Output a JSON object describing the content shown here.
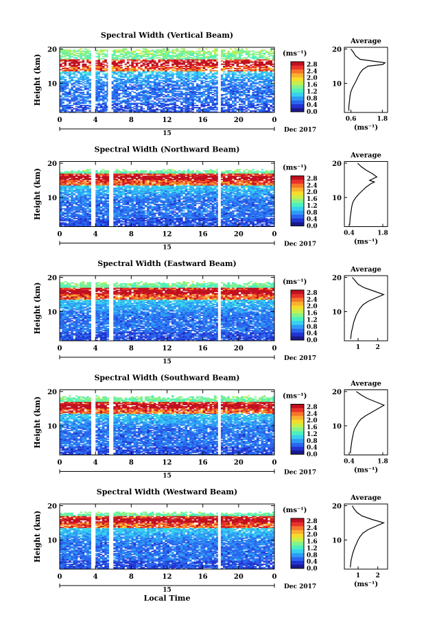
{
  "figure": {
    "date_label": "Dec 2017",
    "day_label": "15",
    "xlabel": "Local Time"
  },
  "colorbar": {
    "unit_label": "(ms⁻¹)",
    "tick_labels": [
      "0.0",
      "0.4",
      "0.8",
      "1.2",
      "1.6",
      "2.0",
      "2.4",
      "2.8"
    ],
    "colors": [
      "#1a1a8c",
      "#2233d0",
      "#2a66ee",
      "#2e9cf5",
      "#38d0f0",
      "#4cf0c0",
      "#86f28a",
      "#c8ee4a",
      "#f6dc2a",
      "#fbb030",
      "#f7762a",
      "#e8322a",
      "#c01020"
    ]
  },
  "average_panel_title": "Average",
  "chart_data": [
    {
      "type": "heatmap",
      "title": "Spectral Width (Vertical Beam)",
      "xlabel": "",
      "ylabel": "Height (km)",
      "x_ticks": [
        "0",
        "4",
        "8",
        "12",
        "16",
        "20",
        "0"
      ],
      "y_ticks": [
        "10",
        "20"
      ],
      "xlim": [
        0,
        24
      ],
      "ylim": [
        1.5,
        20.5
      ],
      "data_gaps_hours": [
        [
          3.6,
          4.0
        ],
        [
          5.4,
          5.8
        ],
        [
          17.7,
          18.0
        ]
      ],
      "top_cutoff_km": 19.5,
      "sparsity": 0.28,
      "average_profile": {
        "xlabel": "(ms⁻¹)",
        "x_ticks": [
          "0.6",
          "1.8"
        ],
        "xlim": [
          0.35,
          2.0
        ],
        "x_tick_values": [
          0.6,
          1.8
        ],
        "height_km": [
          2,
          3,
          4,
          5,
          6,
          7,
          8,
          9,
          10,
          11,
          12,
          13,
          14,
          15,
          15.5,
          16,
          17,
          18,
          19,
          20
        ],
        "value": [
          0.52,
          0.52,
          0.53,
          0.55,
          0.56,
          0.58,
          0.62,
          0.68,
          0.75,
          0.82,
          0.88,
          0.95,
          1.05,
          1.25,
          1.82,
          1.9,
          0.95,
          0.78,
          0.7,
          0.6
        ]
      },
      "colorbar_hidden": false
    },
    {
      "type": "heatmap",
      "title": "Spectral Width (Northward Beam)",
      "xlabel": "",
      "ylabel": "Height (km)",
      "x_ticks": [
        "0",
        "4",
        "8",
        "12",
        "16",
        "20",
        "0"
      ],
      "y_ticks": [
        "10",
        "20"
      ],
      "xlim": [
        0,
        24
      ],
      "ylim": [
        1.5,
        20.5
      ],
      "data_gaps_hours": [
        [
          3.6,
          4.0
        ],
        [
          5.6,
          5.9
        ],
        [
          17.7,
          18.0
        ]
      ],
      "top_cutoff_km": 17.5,
      "sparsity": 0.12,
      "average_profile": {
        "xlabel": "(ms⁻¹)",
        "x_ticks": [
          "0.4",
          "1.8"
        ],
        "xlim": [
          0.2,
          2.0
        ],
        "x_tick_values": [
          0.4,
          1.8
        ],
        "height_km": [
          2,
          3,
          4,
          5,
          6,
          7,
          8,
          9,
          10,
          11,
          12,
          13,
          14,
          14.5,
          15,
          16,
          17,
          18,
          19,
          20
        ],
        "value": [
          0.42,
          0.43,
          0.44,
          0.46,
          0.48,
          0.5,
          0.53,
          0.58,
          0.68,
          0.8,
          0.95,
          1.1,
          1.3,
          1.45,
          1.25,
          1.55,
          1.35,
          1.1,
          0.9,
          0.75
        ]
      },
      "colorbar_hidden": false
    },
    {
      "type": "heatmap",
      "title": "Spectral Width (Eastward Beam)",
      "xlabel": "",
      "ylabel": "Height (km)",
      "x_ticks": [
        "0",
        "4",
        "8",
        "12",
        "16",
        "20",
        "0"
      ],
      "y_ticks": [
        "10",
        "20"
      ],
      "xlim": [
        0,
        24
      ],
      "ylim": [
        1.5,
        20.5
      ],
      "data_gaps_hours": [
        [
          3.6,
          4.0
        ],
        [
          5.6,
          5.9
        ],
        [
          17.7,
          18.0
        ]
      ],
      "top_cutoff_km": 18.0,
      "sparsity": 0.1,
      "average_profile": {
        "xlabel": "",
        "x_ticks": [
          "1",
          "2"
        ],
        "xlim": [
          0.3,
          2.5
        ],
        "x_tick_values": [
          1,
          2
        ],
        "height_km": [
          2,
          3,
          4,
          5,
          6,
          7,
          8,
          9,
          10,
          11,
          12,
          13,
          14,
          15,
          16,
          17,
          18,
          19,
          20
        ],
        "value": [
          0.62,
          0.64,
          0.66,
          0.7,
          0.74,
          0.78,
          0.84,
          0.9,
          1.0,
          1.1,
          1.25,
          1.5,
          1.9,
          2.3,
          1.8,
          1.3,
          1.0,
          0.85,
          0.7
        ]
      },
      "colorbar_hidden": false
    },
    {
      "type": "heatmap",
      "title": "Spectral Width (Southward Beam)",
      "xlabel": "",
      "ylabel": "Height (km)",
      "x_ticks": [
        "0",
        "4",
        "8",
        "12",
        "16",
        "20",
        "0"
      ],
      "y_ticks": [
        "10",
        "20"
      ],
      "xlim": [
        0,
        24
      ],
      "ylim": [
        1.5,
        20.5
      ],
      "data_gaps_hours": [
        [
          3.6,
          4.0
        ],
        [
          5.6,
          5.9
        ],
        [
          17.7,
          18.0
        ]
      ],
      "top_cutoff_km": 18.0,
      "sparsity": 0.12,
      "average_profile": {
        "xlabel": "(ms⁻¹)",
        "x_ticks": [
          "0.4",
          "1.8"
        ],
        "xlim": [
          0.2,
          2.0
        ],
        "x_tick_values": [
          0.4,
          1.8
        ],
        "height_km": [
          2,
          3,
          4,
          5,
          6,
          7,
          8,
          9,
          10,
          11,
          12,
          13,
          14,
          15,
          16,
          17,
          18,
          19,
          20
        ],
        "value": [
          0.45,
          0.46,
          0.48,
          0.5,
          0.52,
          0.55,
          0.58,
          0.62,
          0.7,
          0.78,
          0.9,
          1.1,
          1.35,
          1.6,
          1.85,
          1.5,
          1.15,
          0.9,
          0.7
        ]
      },
      "colorbar_hidden": false
    },
    {
      "type": "heatmap",
      "title": "Spectral Width (Westward Beam)",
      "xlabel": "Local Time",
      "ylabel": "Height (km)",
      "x_ticks": [
        "0",
        "4",
        "8",
        "12",
        "16",
        "20",
        "0"
      ],
      "y_ticks": [
        "10",
        "20"
      ],
      "xlim": [
        0,
        24
      ],
      "ylim": [
        1.5,
        20.5
      ],
      "data_gaps_hours": [
        [
          3.6,
          4.0
        ],
        [
          5.6,
          5.9
        ],
        [
          17.7,
          18.0
        ]
      ],
      "top_cutoff_km": 17.5,
      "sparsity": 0.1,
      "average_profile": {
        "xlabel": "(ms⁻¹)",
        "x_ticks": [
          "1",
          "2"
        ],
        "xlim": [
          0.3,
          2.5
        ],
        "x_tick_values": [
          1,
          2
        ],
        "height_km": [
          2,
          3,
          4,
          5,
          6,
          7,
          8,
          9,
          10,
          11,
          12,
          13,
          14,
          15,
          16,
          17,
          18,
          19,
          20
        ],
        "value": [
          0.6,
          0.62,
          0.64,
          0.68,
          0.72,
          0.78,
          0.84,
          0.92,
          1.0,
          1.1,
          1.25,
          1.5,
          1.9,
          2.3,
          1.7,
          1.2,
          0.95,
          0.8,
          0.7
        ]
      },
      "colorbar_hidden": false
    }
  ]
}
